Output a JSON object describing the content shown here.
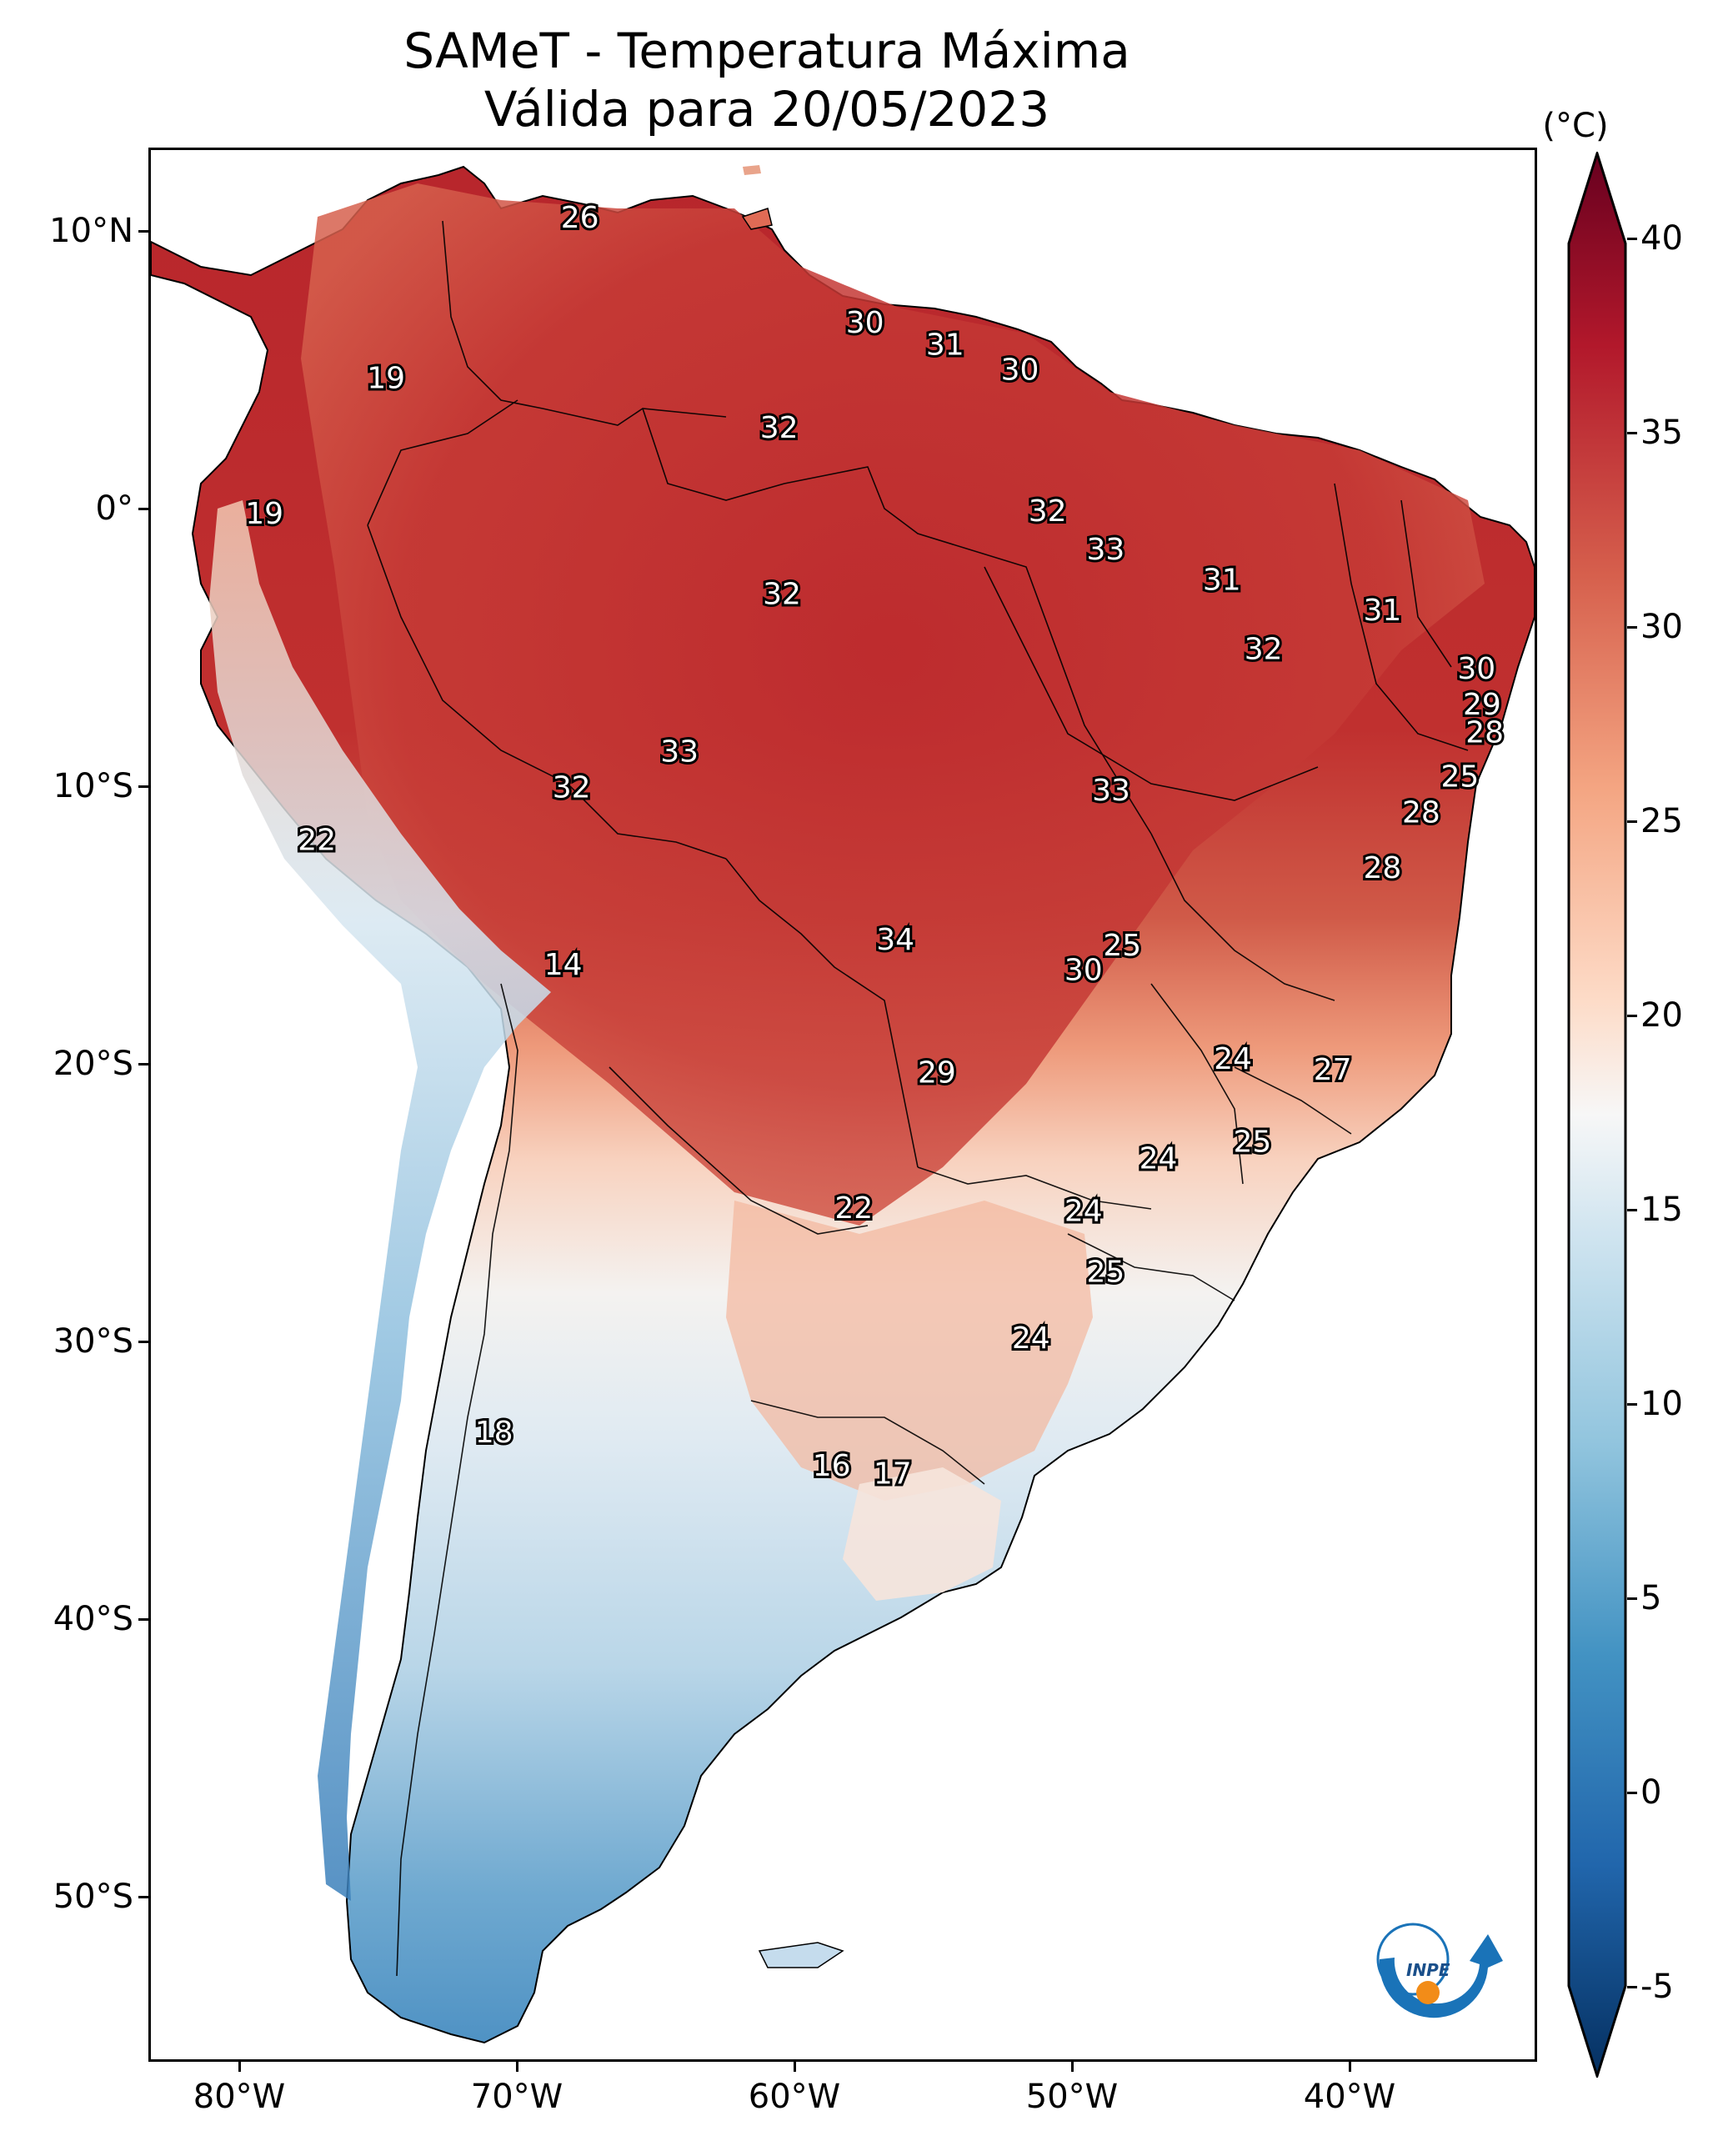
{
  "title": {
    "line1": "SAMeT - Temperatura Máxima",
    "line2": "Válida para 20/05/2023"
  },
  "axes": {
    "lat_labels": [
      "10°N",
      "0°",
      "10°S",
      "20°S",
      "30°S",
      "40°S",
      "50°S"
    ],
    "lat_values": [
      10,
      0,
      -10,
      -20,
      -30,
      -40,
      -50
    ],
    "lon_labels": [
      "80°W",
      "70°W",
      "60°W",
      "50°W",
      "40°W"
    ],
    "lon_values": [
      -80,
      -70,
      -60,
      -50,
      -40
    ],
    "lon_range": [
      -83,
      -33
    ],
    "lat_range": [
      -56,
      13
    ]
  },
  "colorbar": {
    "unit": "(°C)",
    "labels": [
      "40",
      "35",
      "30",
      "25",
      "20",
      "15",
      "10",
      "5",
      "0",
      "-5"
    ],
    "values": [
      40,
      35,
      30,
      25,
      20,
      15,
      10,
      5,
      0,
      -5
    ],
    "range": [
      -5,
      40
    ],
    "extend": "both",
    "colormap": "RdBu_r",
    "colors": [
      "#67001f",
      "#b2182b",
      "#d6604d",
      "#f4a582",
      "#fddbc7",
      "#f7f7f7",
      "#d1e5f0",
      "#92c5de",
      "#4393c3",
      "#2166ac",
      "#053061"
    ]
  },
  "station_values": [
    {
      "value": "26",
      "lon": -67.5,
      "lat": 10.5
    },
    {
      "value": "30",
      "lon": -57.2,
      "lat": 6.7
    },
    {
      "value": "31",
      "lon": -54.3,
      "lat": 5.9
    },
    {
      "value": "30",
      "lon": -51.6,
      "lat": 5.0
    },
    {
      "value": "19",
      "lon": -74.5,
      "lat": 4.7
    },
    {
      "value": "32",
      "lon": -60.3,
      "lat": 2.9
    },
    {
      "value": "19",
      "lon": -78.9,
      "lat": -0.2
    },
    {
      "value": "32",
      "lon": -50.6,
      "lat": -0.1
    },
    {
      "value": "33",
      "lon": -48.5,
      "lat": -1.5
    },
    {
      "value": "32",
      "lon": -60.2,
      "lat": -3.1
    },
    {
      "value": "31",
      "lon": -44.3,
      "lat": -2.6
    },
    {
      "value": "31",
      "lon": -38.5,
      "lat": -3.7
    },
    {
      "value": "32",
      "lon": -42.8,
      "lat": -5.1
    },
    {
      "value": "30",
      "lon": -35.1,
      "lat": -5.8
    },
    {
      "value": "29",
      "lon": -34.9,
      "lat": -7.1
    },
    {
      "value": "28",
      "lon": -34.8,
      "lat": -8.1
    },
    {
      "value": "33",
      "lon": -63.9,
      "lat": -8.8
    },
    {
      "value": "25",
      "lon": -35.7,
      "lat": -9.7
    },
    {
      "value": "32",
      "lon": -67.8,
      "lat": -10.1
    },
    {
      "value": "33",
      "lon": -48.3,
      "lat": -10.2
    },
    {
      "value": "22",
      "lon": -77.0,
      "lat": -12.0
    },
    {
      "value": "28",
      "lon": -37.1,
      "lat": -11.0
    },
    {
      "value": "28",
      "lon": -38.5,
      "lat": -13.0
    },
    {
      "value": "34",
      "lon": -56.1,
      "lat": -15.6
    },
    {
      "value": "25",
      "lon": -47.9,
      "lat": -15.8
    },
    {
      "value": "14",
      "lon": -68.1,
      "lat": -16.5
    },
    {
      "value": "30",
      "lon": -49.3,
      "lat": -16.7
    },
    {
      "value": "24",
      "lon": -43.9,
      "lat": -19.9
    },
    {
      "value": "27",
      "lon": -40.3,
      "lat": -20.3
    },
    {
      "value": "29",
      "lon": -54.6,
      "lat": -20.4
    },
    {
      "value": "25",
      "lon": -43.2,
      "lat": -22.9
    },
    {
      "value": "24",
      "lon": -46.6,
      "lat": -23.5
    },
    {
      "value": "22",
      "lon": -57.6,
      "lat": -25.3
    },
    {
      "value": "24",
      "lon": -49.3,
      "lat": -25.4
    },
    {
      "value": "25",
      "lon": -48.5,
      "lat": -27.6
    },
    {
      "value": "24",
      "lon": -51.2,
      "lat": -30.0
    },
    {
      "value": "18",
      "lon": -70.6,
      "lat": -33.4
    },
    {
      "value": "16",
      "lon": -58.4,
      "lat": -34.6
    },
    {
      "value": "17",
      "lon": -56.2,
      "lat": -34.9
    }
  ],
  "logo": {
    "text": "INPE"
  }
}
